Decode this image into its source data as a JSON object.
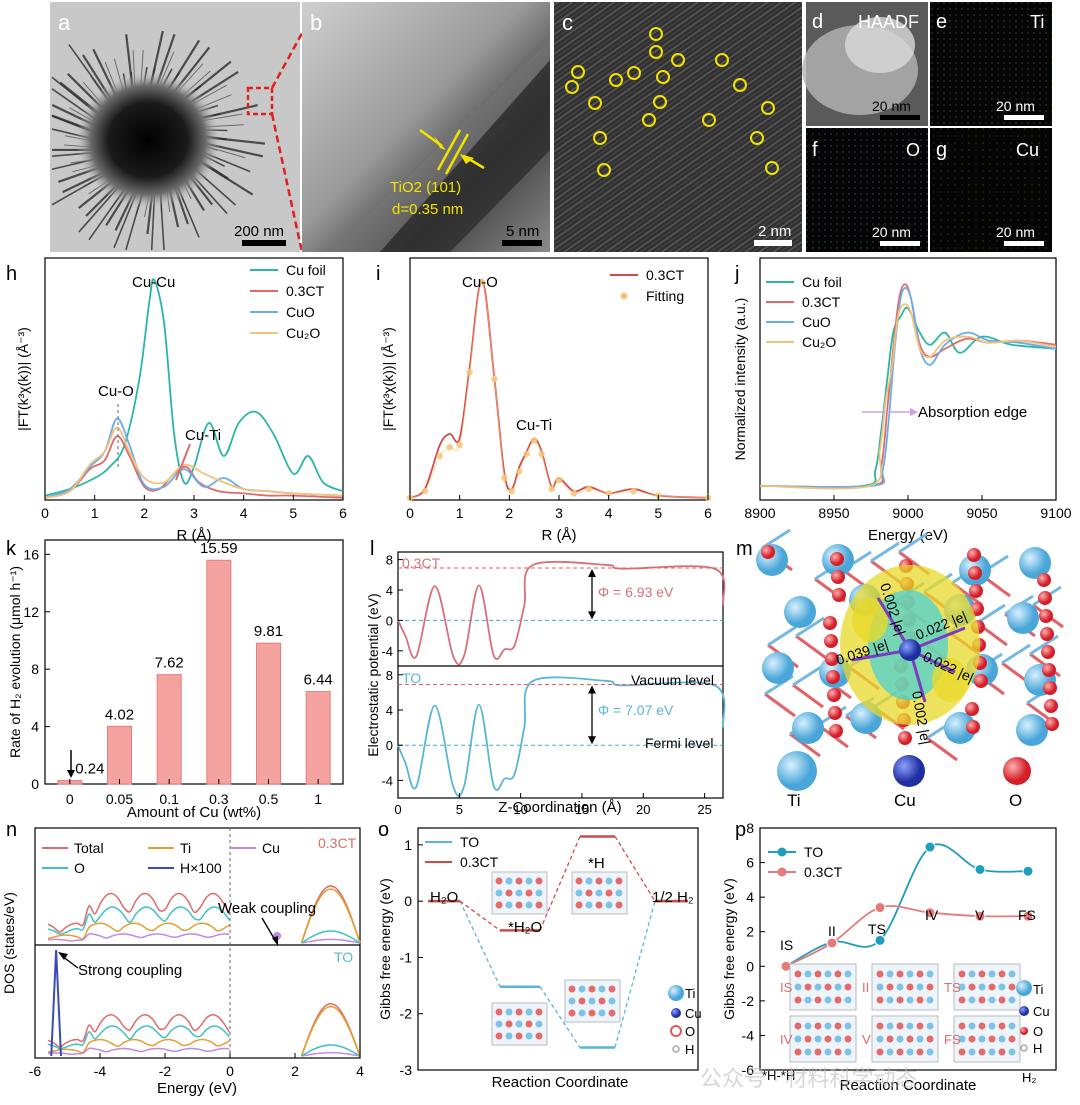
{
  "watermark": "公众号 · 材料科学动态",
  "panels": {
    "a": {
      "letter": "a",
      "scale": "200 nm"
    },
    "b": {
      "letter": "b",
      "scale": "5 nm",
      "annot1": "TiO2 (101)",
      "annot2": "d=0.35 nm"
    },
    "c": {
      "letter": "c",
      "scale": "2 nm"
    },
    "d": {
      "letter": "d",
      "tag": "HAADF",
      "scale": "20 nm"
    },
    "e": {
      "letter": "e",
      "tag": "Ti",
      "scale": "20 nm"
    },
    "f": {
      "letter": "f",
      "tag": "O",
      "scale": "20 nm"
    },
    "g": {
      "letter": "g",
      "tag": "Cu",
      "scale": "20 nm"
    },
    "h": {
      "letter": "h",
      "xlabel": "R (Å)",
      "ylabel": "|FT(k³χ(k))| (Å⁻³)",
      "legend": [
        "Cu foil",
        "0.3CT",
        "CuO",
        "Cu₂O"
      ],
      "annot": [
        "Cu-Cu",
        "Cu-O",
        "Cu-Ti"
      ]
    },
    "i": {
      "letter": "i",
      "xlabel": "R (Å)",
      "ylabel": "|FT(k³χ(k))| (Å⁻³)",
      "legend": [
        "0.3CT",
        "Fitting"
      ],
      "annot": [
        "Cu-O",
        "Cu-Ti"
      ]
    },
    "j": {
      "letter": "j",
      "xlabel": "Energy (eV)",
      "ylabel": "Normalized intensity (a.u.)",
      "legend": [
        "Cu foil",
        "0.3CT",
        "CuO",
        "Cu₂O"
      ],
      "annot": [
        "Absorption edge"
      ]
    },
    "k": {
      "letter": "k",
      "xlabel": "Amount of Cu (wt%)",
      "ylabel": "Rate of H₂ evolution (μmol h⁻¹)"
    },
    "l": {
      "letter": "l",
      "xlabel": "Z-Coordination (Å)",
      "ylabel": "Electrostatic potential (eV)",
      "top_tag": "0.3CT",
      "top_phi": "Φ = 6.93 eV",
      "bot_tag": "TO",
      "bot_phi": "Φ = 7.07 eV",
      "vac": "Vacuum level",
      "fermi": "Fermi level"
    },
    "m": {
      "letter": "m",
      "bonds": [
        "0.002 |e|",
        "0.022 |e|",
        "0.039 |e|",
        "0.022 |e|",
        "0.002 |e|"
      ],
      "atoms": [
        "Ti",
        "Cu",
        "O"
      ]
    },
    "n": {
      "letter": "n",
      "xlabel": "Energy (eV)",
      "ylabel": "DOS (states/eV)",
      "legend": [
        "Total",
        "Ti",
        "Cu",
        "O",
        "H×100"
      ],
      "top_tag": "0.3CT",
      "bot_tag": "TO",
      "weak": "Weak coupling",
      "strong": "Strong coupling"
    },
    "o": {
      "letter": "o",
      "xlabel": "Reaction Coordinate",
      "ylabel": "Gibbs free energy (eV)",
      "legend": [
        "TO",
        "0.3CT"
      ],
      "labels": [
        "H₂O",
        "*H₂O",
        "*H",
        "1/2 H₂"
      ],
      "atoms": [
        "Ti",
        "Cu",
        "O",
        "H"
      ]
    },
    "p": {
      "letter": "p",
      "xlabel": "Reaction Coordinate",
      "ylabel": "Gibbs free energy (eV)",
      "legend": [
        "TO",
        "0.3CT"
      ],
      "states": [
        "IS",
        "II",
        "TS",
        "IV",
        "V",
        "FS"
      ],
      "bottom_left": "*H-*H",
      "bottom_right": "H₂",
      "atoms": [
        "Ti",
        "Cu",
        "O",
        "H"
      ]
    }
  },
  "chart_data": [
    {
      "panel": "k",
      "type": "bar",
      "categories": [
        "0",
        "0.05",
        "0.1",
        "0.3",
        "0.5",
        "1"
      ],
      "values": [
        0.24,
        4.02,
        7.62,
        15.59,
        9.81,
        6.44
      ],
      "ylim": [
        0,
        17
      ],
      "yticks": [
        0,
        4,
        8,
        12,
        16
      ],
      "color": "#f4a3a0"
    },
    {
      "panel": "h",
      "type": "line",
      "xlim": [
        0,
        6
      ],
      "xticks": [
        0,
        1,
        2,
        3,
        4,
        5,
        6
      ],
      "series": [
        {
          "name": "Cu foil",
          "color": "#2bb5a8",
          "x": [
            0,
            0.5,
            1.0,
            1.3,
            1.6,
            1.9,
            2.1,
            2.2,
            2.4,
            2.6,
            2.8,
            3.0,
            3.3,
            3.6,
            3.9,
            4.25,
            4.6,
            5.0,
            5.3,
            5.6,
            6.0
          ],
          "y": [
            0.02,
            0.05,
            0.1,
            0.15,
            0.25,
            0.55,
            0.9,
            1.0,
            0.8,
            0.3,
            0.08,
            0.15,
            0.35,
            0.2,
            0.35,
            0.4,
            0.3,
            0.12,
            0.2,
            0.08,
            0.04
          ]
        },
        {
          "name": "0.3CT",
          "color": "#e06a6a",
          "x": [
            0,
            0.5,
            0.9,
            1.2,
            1.45,
            1.7,
            2.0,
            2.3,
            2.6,
            2.85,
            3.1,
            3.5,
            4.0,
            4.5,
            5.0,
            6.0
          ],
          "y": [
            0.01,
            0.04,
            0.14,
            0.18,
            0.29,
            0.2,
            0.06,
            0.05,
            0.12,
            0.15,
            0.08,
            0.04,
            0.03,
            0.02,
            0.02,
            0.01
          ]
        },
        {
          "name": "CuO",
          "color": "#6aaee8",
          "x": [
            0,
            0.5,
            0.9,
            1.2,
            1.45,
            1.7,
            2.0,
            2.4,
            2.8,
            3.2,
            3.6,
            4.0,
            4.5,
            5.0,
            6.0
          ],
          "y": [
            0.01,
            0.05,
            0.15,
            0.22,
            0.37,
            0.25,
            0.07,
            0.06,
            0.14,
            0.06,
            0.1,
            0.05,
            0.04,
            0.03,
            0.02
          ]
        },
        {
          "name": "Cu₂O",
          "color": "#f1c27a",
          "x": [
            0,
            0.5,
            0.9,
            1.2,
            1.45,
            1.7,
            2.0,
            2.4,
            2.8,
            3.2,
            3.6,
            4.0,
            4.5,
            5.0,
            6.0
          ],
          "y": [
            0.01,
            0.04,
            0.16,
            0.22,
            0.33,
            0.22,
            0.1,
            0.08,
            0.16,
            0.12,
            0.08,
            0.05,
            0.04,
            0.03,
            0.02
          ]
        }
      ]
    },
    {
      "panel": "i",
      "type": "line",
      "xlim": [
        0,
        6
      ],
      "xticks": [
        0,
        1,
        2,
        3,
        4,
        5,
        6
      ],
      "series": [
        {
          "name": "0.3CT",
          "color": "#d24b4b",
          "x": [
            0,
            0.3,
            0.6,
            0.8,
            1.0,
            1.2,
            1.45,
            1.7,
            1.9,
            2.05,
            2.2,
            2.35,
            2.5,
            2.65,
            2.85,
            3.0,
            3.3,
            3.6,
            4.0,
            4.5,
            5.0,
            6.0
          ],
          "y": [
            0.01,
            0.05,
            0.25,
            0.3,
            0.28,
            0.6,
            1.0,
            0.55,
            0.12,
            0.05,
            0.15,
            0.22,
            0.28,
            0.22,
            0.06,
            0.1,
            0.04,
            0.06,
            0.03,
            0.05,
            0.02,
            0.01
          ]
        },
        {
          "name": "Fitting",
          "color": "#f5c67a",
          "x": [
            0,
            0.3,
            0.6,
            0.8,
            1.0,
            1.2,
            1.45,
            1.7,
            1.9,
            2.05,
            2.2,
            2.35,
            2.5,
            2.65,
            2.85,
            3.0,
            3.3,
            3.6,
            4.0,
            4.5,
            5.0,
            6.0
          ],
          "y": [
            0.01,
            0.04,
            0.2,
            0.24,
            0.25,
            0.58,
            0.99,
            0.55,
            0.1,
            0.04,
            0.13,
            0.21,
            0.27,
            0.21,
            0.05,
            0.09,
            0.03,
            0.05,
            0.03,
            0.04,
            0.02,
            0.01
          ]
        }
      ]
    },
    {
      "panel": "j",
      "type": "line",
      "xlim": [
        8900,
        9100
      ],
      "xticks": [
        8900,
        8950,
        9000,
        9050,
        9100
      ],
      "series": [
        {
          "name": "Cu foil",
          "color": "#2bb5a8",
          "x": [
            8900,
            8970,
            8978,
            8982,
            8986,
            8990,
            8995,
            9000,
            9008,
            9015,
            9025,
            9035,
            9050,
            9070,
            9100
          ],
          "y": [
            0.02,
            0.02,
            0.1,
            0.3,
            0.55,
            0.78,
            0.86,
            0.9,
            0.78,
            0.72,
            0.78,
            0.68,
            0.76,
            0.72,
            0.7
          ]
        },
        {
          "name": "0.3CT",
          "color": "#e06a6a",
          "x": [
            8900,
            8975,
            8982,
            8986,
            8990,
            8994,
            8998,
            9002,
            9008,
            9015,
            9025,
            9040,
            9055,
            9075,
            9100
          ],
          "y": [
            0.02,
            0.02,
            0.12,
            0.4,
            0.7,
            0.95,
            1.02,
            0.95,
            0.72,
            0.66,
            0.7,
            0.75,
            0.73,
            0.74,
            0.72
          ]
        },
        {
          "name": "CuO",
          "color": "#6aaee8",
          "x": [
            8900,
            8976,
            8983,
            8987,
            8991,
            8995,
            8999,
            9003,
            9008,
            9015,
            9025,
            9040,
            9055,
            9075,
            9100
          ],
          "y": [
            0.02,
            0.02,
            0.1,
            0.35,
            0.7,
            0.95,
            1.0,
            0.92,
            0.7,
            0.62,
            0.72,
            0.78,
            0.74,
            0.73,
            0.7
          ]
        },
        {
          "name": "Cu₂O",
          "color": "#f1c27a",
          "x": [
            8900,
            8974,
            8981,
            8985,
            8989,
            8993,
            8997,
            9002,
            9008,
            9015,
            9025,
            9040,
            9055,
            9075,
            9100
          ],
          "y": [
            0.02,
            0.02,
            0.2,
            0.45,
            0.6,
            0.85,
            0.92,
            0.88,
            0.7,
            0.66,
            0.74,
            0.76,
            0.73,
            0.74,
            0.71
          ]
        }
      ]
    },
    {
      "panel": "l",
      "type": "line",
      "xlim": [
        0,
        26.5
      ],
      "xticks": [
        0,
        5,
        10,
        15,
        20,
        25
      ],
      "yticks": [
        -4,
        0,
        4,
        8
      ],
      "series": [
        {
          "name": "0.3CT",
          "color": "#d8707a",
          "x": [
            0,
            0.6,
            1.5,
            3.0,
            4.5,
            5.4,
            6.6,
            7.8,
            8.7,
            9.5,
            10.3,
            11.0,
            17.0,
            18.3,
            25.8,
            26.5
          ],
          "y": [
            0,
            -2,
            -4.7,
            4.5,
            -4.7,
            -4.6,
            4.6,
            -4.6,
            -3.8,
            -3.3,
            2,
            7.3,
            7.3,
            6.8,
            6.8,
            2
          ]
        },
        {
          "name": "TO",
          "color": "#5ab6d6",
          "x": [
            0,
            0.6,
            1.5,
            3.0,
            4.5,
            5.4,
            6.6,
            7.8,
            8.7,
            9.5,
            10.3,
            11.0,
            17.0,
            18.3,
            25.8,
            26.5
          ],
          "y": [
            0,
            -2,
            -4.7,
            4.5,
            -4.7,
            -4.6,
            4.6,
            -4.6,
            -3.8,
            -3.3,
            2,
            7.3,
            7.3,
            6.8,
            6.8,
            2
          ]
        }
      ]
    },
    {
      "panel": "o",
      "type": "line",
      "ylim": [
        -3,
        1.3
      ],
      "yticks": [
        1,
        0,
        -1,
        -2,
        -3
      ],
      "series": [
        {
          "name": "TO",
          "color": "#5ab6d6",
          "levels": [
            0,
            -1.52,
            -2.6,
            0
          ]
        },
        {
          "name": "0.3CT",
          "color": "#d24b4b",
          "levels": [
            0,
            -0.52,
            1.15,
            0
          ]
        }
      ]
    },
    {
      "panel": "p",
      "type": "line",
      "ylim": [
        -6,
        8
      ],
      "yticks": [
        8,
        6,
        4,
        2,
        0,
        -2,
        -4,
        -6
      ],
      "categories": [
        "IS",
        "II",
        "TS",
        "IV",
        "V",
        "FS"
      ],
      "series": [
        {
          "name": "TO",
          "color": "#1f9dbd",
          "values": [
            0,
            1.4,
            1.5,
            6.9,
            5.6,
            5.5
          ]
        },
        {
          "name": "0.3CT",
          "color": "#e47a7a",
          "values": [
            0,
            1.35,
            3.4,
            3.1,
            2.9,
            2.9
          ]
        }
      ]
    }
  ]
}
